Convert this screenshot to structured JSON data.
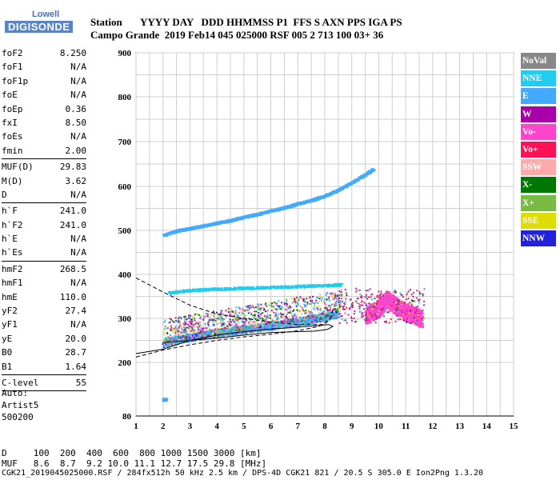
{
  "logo": {
    "line1": "Lowell",
    "line2": "DIGISONDE"
  },
  "header": {
    "row1": "Station       YYYY DAY   DDD HHMMSS P1  FFS S AXN PPS IGA PS",
    "row2": "Campo Grande  2019 Feb14 045 025000 RSF 005 2 713 100 03+ 36"
  },
  "params": [
    {
      "name": "foF2",
      "value": "8.250"
    },
    {
      "name": "foF1",
      "value": "N/A"
    },
    {
      "name": "foF1p",
      "value": "N/A"
    },
    {
      "name": "foE",
      "value": "N/A"
    },
    {
      "name": "foEp",
      "value": "0.36"
    },
    {
      "name": "fxI",
      "value": "8.50"
    },
    {
      "name": "foEs",
      "value": "N/A"
    },
    {
      "name": "fmin",
      "value": "2.00"
    },
    {
      "sep": true
    },
    {
      "name": "MUF(D)",
      "value": "29.83"
    },
    {
      "name": "M(D)",
      "value": "3.62"
    },
    {
      "name": "D",
      "value": "N/A"
    },
    {
      "sep": true
    },
    {
      "name": "h`F",
      "value": "241.0"
    },
    {
      "name": "h`F2",
      "value": "241.0"
    },
    {
      "name": "h`E",
      "value": "N/A"
    },
    {
      "name": "h`Es",
      "value": "N/A"
    },
    {
      "sep": true
    },
    {
      "name": "hmF2",
      "value": "268.5"
    },
    {
      "name": "hmF1",
      "value": "N/A"
    },
    {
      "name": "hmE",
      "value": "110.0"
    },
    {
      "name": "yF2",
      "value": "27.4"
    },
    {
      "name": "yF1",
      "value": "N/A"
    },
    {
      "name": "yE",
      "value": "20.0"
    },
    {
      "name": "B0",
      "value": "28.7"
    },
    {
      "name": "B1",
      "value": "1.64"
    },
    {
      "sep": true
    },
    {
      "name": "C-level",
      "value": "55"
    },
    {
      "sep": true
    }
  ],
  "auto": {
    "line1": "Auto:",
    "line2": "Artist5",
    "line3": "500200"
  },
  "legend": [
    {
      "label": "NoVal",
      "color": "#888888"
    },
    {
      "label": "NNE",
      "color": "#22ccee"
    },
    {
      "label": "E",
      "color": "#44aaff"
    },
    {
      "label": "W",
      "color": "#aa00aa"
    },
    {
      "label": "Vo-",
      "color": "#ff44cc"
    },
    {
      "label": "Vo+",
      "color": "#ff1155"
    },
    {
      "label": "SSW",
      "color": "#ffaaaa"
    },
    {
      "label": "X-",
      "color": "#007700"
    },
    {
      "label": "X+",
      "color": "#77bb44"
    },
    {
      "label": "SSE",
      "color": "#dddd00"
    },
    {
      "label": "NNW",
      "color": "#2222dd"
    }
  ],
  "bottom": {
    "row1": "D     100  200  400  600  800 1000 1500 3000 [km]",
    "row2": "MUF   8.6  8.7  9.2 10.0 11.1 12.7 17.5 29.8 [MHz]"
  },
  "footer": "CGK21_2019045025000.RSF / 284fx512h 50 kHz 2.5 km / DPS-4D CGK21 821 / 20.5 S 305.0 E Ion2Png 1.3.20",
  "chart_data": {
    "type": "scatter",
    "xlim": [
      1,
      15
    ],
    "ylim": [
      80,
      900
    ],
    "xticks": [
      1,
      2,
      3,
      4,
      5,
      6,
      7,
      8,
      9,
      10,
      11,
      12,
      13,
      14,
      15
    ],
    "yticks": [
      80,
      200,
      300,
      400,
      500,
      600,
      700,
      800,
      900
    ],
    "grid": true,
    "series": [
      {
        "x": [
          2.0,
          2.5,
          3.0,
          3.5,
          4.0,
          4.5,
          5.0,
          5.5,
          6.0,
          6.5,
          7.0,
          7.5,
          8.0,
          8.5,
          9.0,
          9.5,
          9.8
        ],
        "y": [
          490,
          500,
          506,
          512,
          518,
          524,
          532,
          538,
          546,
          553,
          562,
          570,
          580,
          593,
          610,
          628,
          640
        ],
        "color": "#44aaff"
      },
      {
        "x": [
          2.0,
          2.5,
          3.0,
          3.5,
          4.0,
          4.5,
          5.0,
          5.5,
          6.0,
          6.5,
          7.0,
          7.5,
          8.0,
          8.5
        ],
        "y": [
          245,
          252,
          258,
          263,
          268,
          272,
          276,
          280,
          284,
          289,
          293,
          298,
          305,
          312
        ],
        "color": "#44aaff"
      },
      {
        "x": [
          2.2,
          3.0,
          4.0,
          5.0,
          6.0,
          7.0,
          8.0,
          8.6
        ],
        "y": [
          360,
          365,
          368,
          370,
          372,
          374,
          376,
          378
        ],
        "color": "#22ccee"
      },
      {
        "x": [
          9.5,
          10.0,
          10.3,
          10.6,
          11.0,
          11.3,
          11.6
        ],
        "y": [
          305,
          325,
          345,
          330,
          315,
          308,
          300
        ],
        "color": "#ff44cc"
      },
      {
        "x": [
          2.0,
          2.1
        ],
        "y": [
          118,
          118
        ],
        "color": "#44aaff"
      }
    ]
  }
}
